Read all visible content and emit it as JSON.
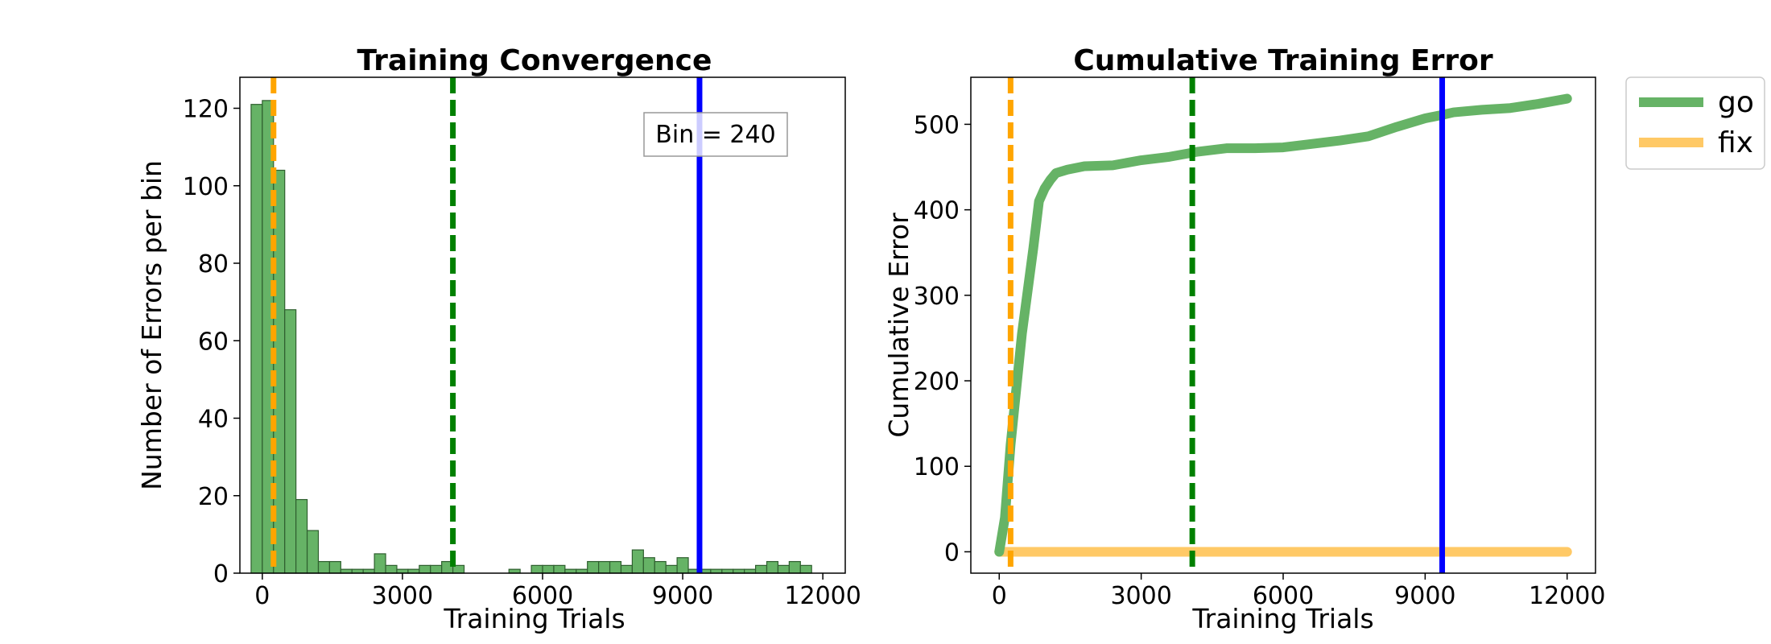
{
  "chart_data": [
    {
      "type": "bar",
      "title": "Training Convergence",
      "xlabel": "Training Trials",
      "ylabel": "Number of Errors per bin",
      "annotation": "Bin = 240",
      "xlim": [
        -480,
        12480
      ],
      "ylim": [
        0,
        128
      ],
      "xticks": [
        0,
        3000,
        6000,
        9000,
        12000
      ],
      "yticks": [
        0,
        20,
        40,
        60,
        80,
        100,
        120
      ],
      "bin_width": 240,
      "bar_color": "#66b366",
      "bar_edge": "#2f5f2f",
      "bins_start": [
        -240,
        0,
        240,
        480,
        720,
        960,
        1200,
        1440,
        1680,
        1920,
        2160,
        2400,
        2640,
        2880,
        3120,
        3360,
        3600,
        3840,
        4080,
        4320,
        4560,
        4800,
        5040,
        5280,
        5520,
        5760,
        6000,
        6240,
        6480,
        6720,
        6960,
        7200,
        7440,
        7680,
        7920,
        8160,
        8400,
        8640,
        8880,
        9120,
        9360,
        9600,
        9840,
        10080,
        10320,
        10560,
        10800,
        11040,
        11280,
        11520
      ],
      "values": [
        121,
        122,
        104,
        68,
        19,
        11,
        3,
        3,
        1,
        1,
        1,
        5,
        2,
        1,
        1,
        2,
        2,
        3,
        2,
        0,
        0,
        0,
        0,
        1,
        0,
        2,
        2,
        2,
        1,
        1,
        3,
        3,
        3,
        2,
        6,
        4,
        3,
        2,
        4,
        1,
        1,
        1,
        1,
        1,
        1,
        2,
        3,
        2,
        3,
        2
      ],
      "vlines": [
        {
          "x": 240,
          "color": "#ffa500",
          "style": "dashed"
        },
        {
          "x": 4080,
          "color": "#008000",
          "style": "dashed"
        },
        {
          "x": 9360,
          "color": "#0000ff",
          "style": "solid"
        }
      ]
    },
    {
      "type": "line",
      "title": "Cumulative Training Error",
      "xlabel": "Training Trials",
      "ylabel": "Cumulative Error",
      "xlim": [
        -600,
        12600
      ],
      "ylim": [
        -25,
        555
      ],
      "xticks": [
        0,
        3000,
        6000,
        9000,
        12000
      ],
      "yticks": [
        0,
        100,
        200,
        300,
        400,
        500
      ],
      "series": [
        {
          "name": "go",
          "color": "#66b366",
          "x": [
            0,
            120,
            240,
            360,
            480,
            600,
            720,
            840,
            960,
            1080,
            1200,
            1440,
            1800,
            2400,
            3000,
            3600,
            4200,
            4800,
            5400,
            6000,
            6600,
            7200,
            7800,
            8400,
            9000,
            9360,
            9600,
            10200,
            10800,
            11400,
            12000
          ],
          "y": [
            0,
            40,
            125,
            190,
            255,
            305,
            355,
            410,
            425,
            435,
            443,
            447,
            451,
            452,
            458,
            462,
            468,
            472,
            472,
            473,
            477,
            481,
            486,
            497,
            507,
            511,
            514,
            517,
            519,
            524,
            530
          ]
        },
        {
          "name": "fix",
          "color": "#ffc966",
          "x": [
            0,
            12000
          ],
          "y": [
            0,
            0
          ]
        }
      ],
      "vlines": [
        {
          "x": 240,
          "color": "#ffa500",
          "style": "dashed"
        },
        {
          "x": 4080,
          "color": "#008000",
          "style": "dashed"
        },
        {
          "x": 9360,
          "color": "#0000ff",
          "style": "solid"
        }
      ],
      "legend": {
        "position": "outside-top-right",
        "entries": [
          "go",
          "fix"
        ]
      }
    }
  ]
}
